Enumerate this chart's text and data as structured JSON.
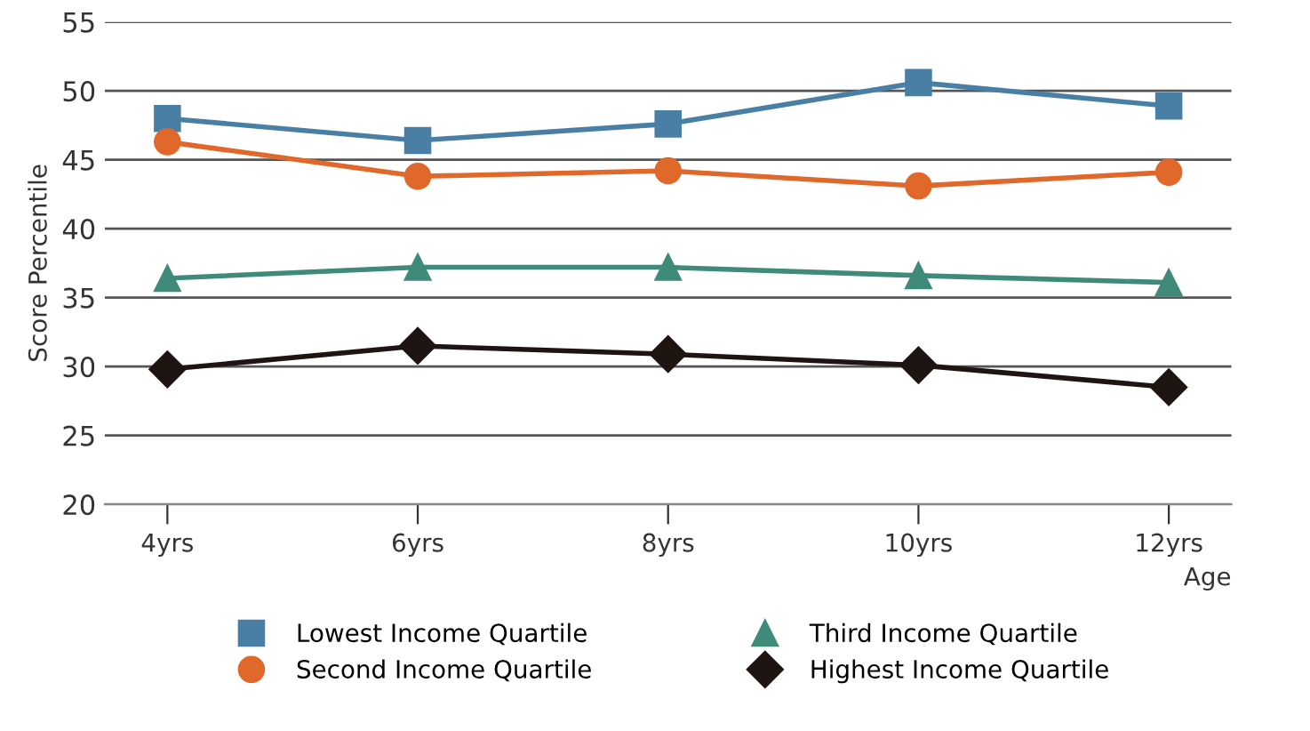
{
  "chart_data": {
    "type": "line",
    "ylabel": "Score Percentile",
    "xlabel": "Age",
    "categories": [
      "4yrs",
      "6yrs",
      "8yrs",
      "10yrs",
      "12yrs"
    ],
    "series": [
      {
        "name": "Lowest Income Quartile",
        "color": "#4a7fa5",
        "marker": "square",
        "values": [
          48.0,
          46.4,
          47.6,
          50.6,
          48.9
        ]
      },
      {
        "name": "Second Income Quartile",
        "color": "#e0682a",
        "marker": "circle",
        "values": [
          46.3,
          43.8,
          44.2,
          43.1,
          44.1
        ]
      },
      {
        "name": "Third Income Quartile",
        "color": "#3f8a78",
        "marker": "triangle",
        "values": [
          36.4,
          37.2,
          37.2,
          36.6,
          36.1
        ]
      },
      {
        "name": "Highest Income Quartile",
        "color": "#1e1412",
        "marker": "diamond",
        "values": [
          29.8,
          31.5,
          30.9,
          30.1,
          28.5
        ]
      }
    ],
    "ylim": [
      20,
      55
    ],
    "yticks": [
      20,
      25,
      30,
      35,
      40,
      45,
      50,
      55
    ],
    "grid": "y",
    "legend": "bottom"
  }
}
